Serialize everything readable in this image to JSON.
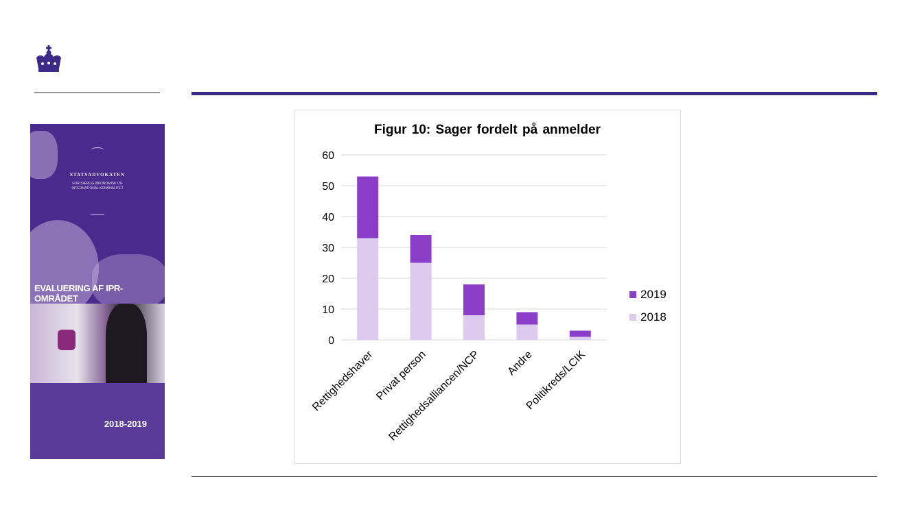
{
  "branding": {
    "emblem_icon": "crown-icon"
  },
  "cover": {
    "organization": "STATSADVOKATEN",
    "subtitle_line1": "FOR SÆRLIG ØKONOMISK OG",
    "subtitle_line2": "INTERNATIONAL KRIMINALITET",
    "title": "EVALUERING AF IPR-OMRÅDET",
    "years": "2018-2019",
    "color": "#4a2a8c"
  },
  "colors": {
    "series_2019": "#8b3fc8",
    "series_2018": "#dccbee",
    "rule": "#3b2a87",
    "grid": "#d9d9d9"
  },
  "chart_data": {
    "type": "bar",
    "stacked": true,
    "title": "Figur 10: Sager fordelt på anmelder",
    "categories": [
      "Rettighedshaver",
      "Privat person",
      "Rettighedsalliancen/NCP",
      "Andre",
      "Politikreds/LCIK"
    ],
    "series": [
      {
        "name": "2018",
        "values": [
          33,
          25,
          8,
          5,
          1
        ]
      },
      {
        "name": "2019",
        "values": [
          20,
          9,
          10,
          4,
          2
        ]
      }
    ],
    "ylim": [
      0,
      60
    ],
    "yticks": [
      "0",
      "10",
      "20",
      "30",
      "40",
      "50",
      "60"
    ],
    "grid": true,
    "legend_position": "right"
  }
}
